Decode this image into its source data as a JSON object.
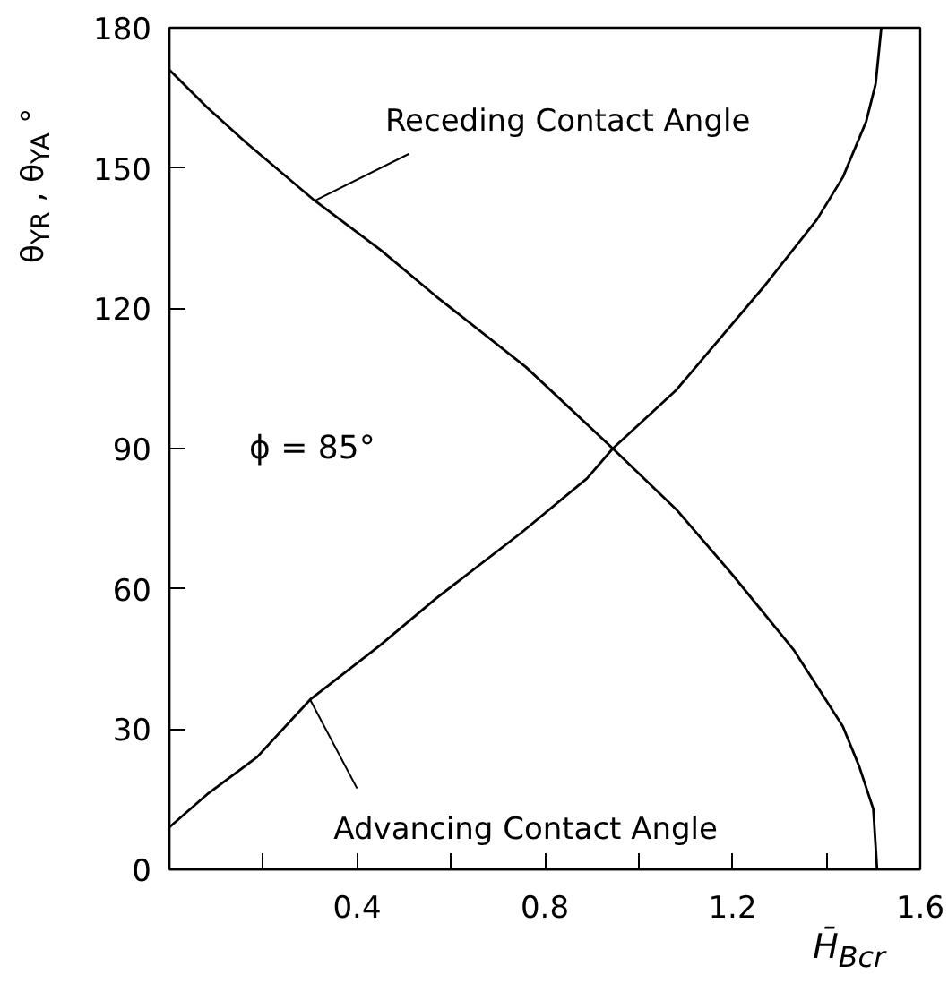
{
  "chart_data": {
    "type": "line",
    "xlabel": "H̄$_{Bcr}$",
    "ylabel": "θ$_{YR}$ , θ$_{YA}$ °",
    "series": [
      {
        "color": "#000000",
        "x": [
          0,
          0.08,
          0.164,
          0.31,
          0.45,
          0.569,
          0.76,
          0.945,
          1.08,
          1.2,
          1.33,
          1.435,
          1.47,
          1.5,
          1.508
        ],
        "values": [
          171,
          163,
          155.4,
          143,
          132.5,
          122.5,
          107.4,
          90,
          77,
          63,
          47,
          30.6,
          22,
          12.9,
          0
        ]
      },
      {
        "color": "#000000",
        "x": [
          0,
          0.08,
          0.187,
          0.3,
          0.45,
          0.569,
          0.75,
          0.89,
          0.945,
          1.08,
          1.27,
          1.38,
          1.435,
          1.485,
          1.505,
          1.517
        ],
        "values": [
          9,
          16,
          24,
          36.3,
          48,
          58,
          72,
          83.6,
          90,
          102.5,
          125,
          139,
          148,
          160,
          168,
          180
        ]
      }
    ],
    "annotations": [
      {
        "text": "Receding Contact Angle",
        "x": 0.31,
        "y": 143
      },
      {
        "text": "Advancing Contact Angle",
        "x": 0.3,
        "y": 36.3
      },
      "ϕ = 85°"
    ],
    "xlim": [
      0,
      1.6
    ],
    "ylim": [
      0,
      180
    ],
    "xticks": [
      {
        "value": 0.2,
        "label": null
      },
      0.4,
      {
        "value": 0.6,
        "label": null
      },
      0.8,
      {
        "value": 1.0,
        "label": null
      },
      1.2,
      {
        "value": 1.4,
        "label": null
      },
      1.6
    ],
    "yticks": [
      0,
      30,
      60,
      90,
      120,
      150,
      180
    ],
    "grid": false,
    "marker": "none",
    "line_style": "solid"
  }
}
